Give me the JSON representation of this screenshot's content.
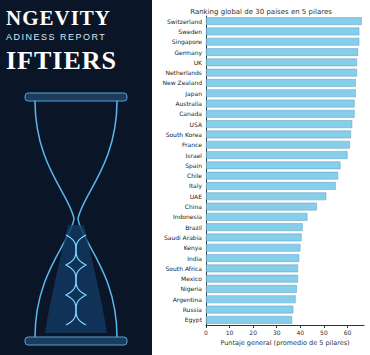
{
  "cover": {
    "title": "NGEVITY",
    "subtitle": "ADINESS REPORT",
    "headline": "IFTIERS"
  },
  "chart_data": {
    "type": "bar",
    "orientation": "horizontal",
    "title": "Ranking global de 30 países en 5 pilares",
    "xlabel": "Puntaje general (promedio de 5 pilares)",
    "categories": [
      "Switzerland",
      "Sweden",
      "Singapore",
      "Germany",
      "UK",
      "Netherlands",
      "New Zealand",
      "Japan",
      "Australia",
      "Canada",
      "USA",
      "South Korea",
      "France",
      "Israel",
      "Spain",
      "Chile",
      "Italy",
      "UAE",
      "China",
      "Indonesia",
      "Brazil",
      "Saudi Arabia",
      "Kenya",
      "India",
      "South Africa",
      "Mexico",
      "Nigeria",
      "Argentina",
      "Russia",
      "Egypt"
    ],
    "values": [
      66,
      65,
      65,
      64.5,
      64,
      64,
      63.5,
      63.5,
      63,
      63,
      62,
      61.5,
      61,
      60,
      57,
      56,
      55,
      51,
      47,
      43,
      41,
      40.5,
      40,
      39.5,
      39,
      39,
      38.5,
      38,
      37,
      36.5
    ],
    "color": "#87ceeb",
    "xlim": [
      0,
      67
    ],
    "xticks": [
      0,
      10,
      20,
      30,
      40,
      50,
      60
    ],
    "grid": false
  }
}
